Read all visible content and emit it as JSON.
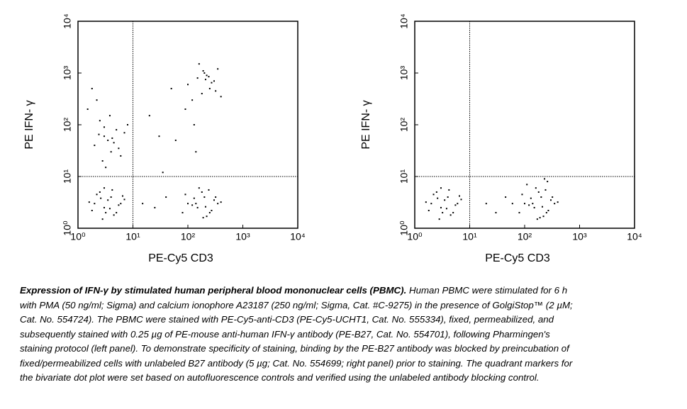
{
  "chart_data": [
    {
      "type": "scatter",
      "xlabel": "PE-Cy5 CD3",
      "ylabel": "PE IFN- γ",
      "color": "#000000",
      "log_scale": true,
      "xlim": [
        1,
        10000
      ],
      "ylim": [
        1,
        10000
      ],
      "xticks": [
        {
          "value": 1,
          "label": "10⁰"
        },
        {
          "value": 10,
          "label": "10¹"
        },
        {
          "value": 100,
          "label": "10²"
        },
        {
          "value": 1000,
          "label": "10³"
        },
        {
          "value": 10000,
          "label": "10⁴"
        }
      ],
      "yticks": [
        {
          "value": 1,
          "label": "10⁰"
        },
        {
          "value": 10,
          "label": "10¹"
        },
        {
          "value": 100,
          "label": "10²"
        },
        {
          "value": 1000,
          "label": "10³"
        },
        {
          "value": 10000,
          "label": "10⁴"
        }
      ],
      "quadrant_x": 10,
      "quadrant_y": 10,
      "x": [
        2,
        3,
        4,
        5,
        2.5,
        3.5,
        6,
        1.8,
        4.5,
        3,
        2.2,
        5.5,
        7,
        3.8,
        2.8,
        4.2,
        1.6,
        6.5,
        3.2,
        2.6,
        100,
        150,
        200,
        250,
        300,
        180,
        120,
        220,
        350,
        90,
        160,
        270,
        400,
        130,
        210,
        80,
        320,
        190,
        240,
        140,
        2,
        3,
        4,
        5,
        2.5,
        3.5,
        6,
        1.5,
        4.5,
        3,
        2.2,
        5.5,
        7,
        3.8,
        2.8,
        4.2,
        8,
        1.8,
        3.2,
        2.4,
        100,
        150,
        200,
        250,
        300,
        180,
        120,
        220,
        350,
        90,
        160,
        270,
        400,
        130,
        210,
        60,
        320,
        190,
        240,
        140,
        15,
        25,
        40,
        20,
        30,
        50,
        35
      ],
      "values": [
        3,
        2.5,
        4,
        2,
        5,
        3.5,
        3,
        2.2,
        1.8,
        6,
        4.5,
        2.8,
        3.6,
        2.4,
        1.5,
        5.5,
        3.2,
        4.2,
        2,
        3.8,
        3,
        2.5,
        4,
        2,
        3.5,
        5,
        2.8,
        1.7,
        3,
        4.5,
        6,
        2.2,
        3.2,
        3.8,
        2.6,
        2,
        4,
        1.6,
        5.5,
        3,
        40,
        60,
        30,
        80,
        120,
        50,
        25,
        200,
        45,
        90,
        300,
        35,
        70,
        150,
        20,
        55,
        100,
        500,
        15,
        65,
        600,
        800,
        1000,
        500,
        700,
        400,
        300,
        900,
        1200,
        200,
        1500,
        650,
        350,
        100,
        750,
        50,
        450,
        1100,
        850,
        30,
        3,
        2.5,
        4,
        150,
        60,
        500,
        12
      ]
    },
    {
      "type": "scatter",
      "xlabel": "PE-Cy5 CD3",
      "ylabel": "PE IFN- γ",
      "color": "#000000",
      "log_scale": true,
      "xlim": [
        1,
        10000
      ],
      "ylim": [
        1,
        10000
      ],
      "xticks": [
        {
          "value": 1,
          "label": "10⁰"
        },
        {
          "value": 10,
          "label": "10¹"
        },
        {
          "value": 100,
          "label": "10²"
        },
        {
          "value": 1000,
          "label": "10³"
        },
        {
          "value": 10000,
          "label": "10⁴"
        }
      ],
      "yticks": [
        {
          "value": 1,
          "label": "10⁰"
        },
        {
          "value": 10,
          "label": "10¹"
        },
        {
          "value": 100,
          "label": "10²"
        },
        {
          "value": 1000,
          "label": "10³"
        },
        {
          "value": 10000,
          "label": "10⁴"
        }
      ],
      "quadrant_x": 10,
      "quadrant_y": 10,
      "x": [
        2,
        3,
        4,
        5,
        2.5,
        3.5,
        6,
        1.8,
        4.5,
        3,
        2.2,
        5.5,
        7,
        3.8,
        2.8,
        4.2,
        1.6,
        6.5,
        3.2,
        2.6,
        100,
        150,
        200,
        250,
        300,
        180,
        120,
        220,
        350,
        90,
        160,
        270,
        400,
        130,
        210,
        80,
        320,
        190,
        240,
        140,
        110,
        260,
        170,
        60,
        230,
        20,
        30,
        45
      ],
      "values": [
        3,
        2.5,
        4,
        2,
        5,
        3.5,
        3,
        2.2,
        1.8,
        6,
        4.5,
        2.8,
        3.6,
        2.4,
        1.5,
        5.5,
        3.2,
        4.2,
        2,
        3.8,
        3,
        2.5,
        4,
        2,
        3.5,
        5,
        2.8,
        1.7,
        3,
        4.5,
        6,
        2.2,
        3.2,
        3.8,
        2.6,
        2,
        4,
        1.6,
        5.5,
        3,
        7,
        8,
        1.5,
        3,
        9,
        3,
        2,
        4
      ]
    }
  ],
  "caption": {
    "title": "Expression of IFN-γ by stimulated human peripheral blood mononuclear cells (PBMC).",
    "text": "Human PBMC were stimulated for 6 h with PMA (50 ng/ml; Sigma) and calcium ionophore A23187 (250 ng/ml; Sigma, Cat. #C-9275) in the presence of GolgiStop™ (2 µM; Cat. No. 554724). The PBMC were stained with PE-Cy5-anti-CD3 (PE-Cy5-UCHT1, Cat. No. 555334), fixed, permeabilized, and subsequently stained with 0.25 µg of PE-mouse anti-human IFN-γ antibody (PE-B27, Cat. No. 554701), following Pharmingen's staining protocol (left panel). To demonstrate specificity of staining, binding by the PE-B27 antibody was blocked by preincubation of fixed/permeabilized cells with unlabeled B27 antibody (5 µg; Cat. No. 554699; right panel) prior to staining. The quadrant markers for the bivariate dot plot were set based on autofluorescence controls and verified using the unlabeled antibody blocking control."
  }
}
